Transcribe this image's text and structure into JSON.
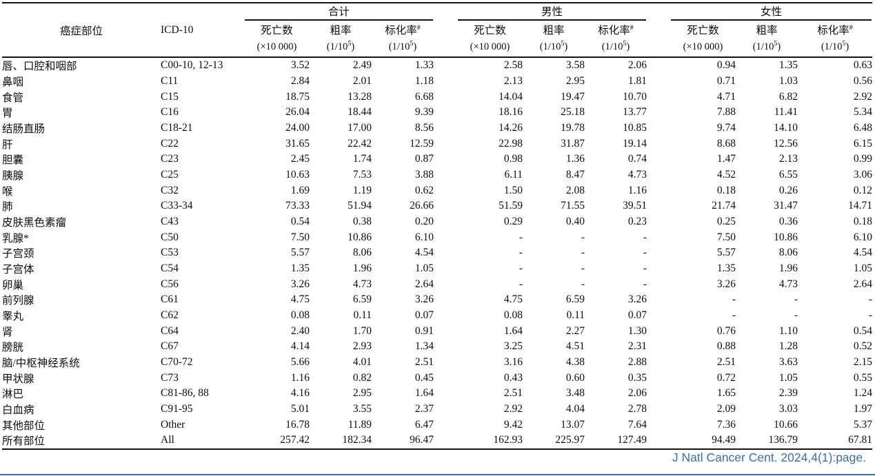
{
  "table": {
    "site_header": "癌症部位",
    "icd_header": "ICD-10",
    "groups": [
      "合计",
      "男性",
      "女性"
    ],
    "subcols": [
      {
        "label": "死亡数",
        "sup": "",
        "unit_pre": "(×10 000)",
        "unit_sup": "",
        "unit_post": ""
      },
      {
        "label": "粗率",
        "sup": "",
        "unit_pre": "(1/10",
        "unit_sup": "5",
        "unit_post": ")"
      },
      {
        "label": "标化率",
        "sup": "#",
        "unit_pre": "(1/10",
        "unit_sup": "5",
        "unit_post": ")"
      }
    ],
    "rows": [
      {
        "site": "唇、口腔和咽部",
        "icd": "C00-10, 12-13",
        "values": [
          "3.52",
          "2.49",
          "1.33",
          "2.58",
          "3.58",
          "2.06",
          "0.94",
          "1.35",
          "0.63"
        ]
      },
      {
        "site": "鼻咽",
        "icd": "C11",
        "values": [
          "2.84",
          "2.01",
          "1.18",
          "2.13",
          "2.95",
          "1.81",
          "0.71",
          "1.03",
          "0.56"
        ]
      },
      {
        "site": "食管",
        "icd": "C15",
        "values": [
          "18.75",
          "13.28",
          "6.68",
          "14.04",
          "19.47",
          "10.70",
          "4.71",
          "6.82",
          "2.92"
        ]
      },
      {
        "site": "胃",
        "icd": "C16",
        "values": [
          "26.04",
          "18.44",
          "9.39",
          "18.16",
          "25.18",
          "13.77",
          "7.88",
          "11.41",
          "5.34"
        ]
      },
      {
        "site": "结肠直肠",
        "icd": "C18-21",
        "values": [
          "24.00",
          "17.00",
          "8.56",
          "14.26",
          "19.78",
          "10.85",
          "9.74",
          "14.10",
          "6.48"
        ]
      },
      {
        "site": "肝",
        "icd": "C22",
        "values": [
          "31.65",
          "22.42",
          "12.59",
          "22.98",
          "31.87",
          "19.14",
          "8.68",
          "12.56",
          "6.15"
        ]
      },
      {
        "site": "胆囊",
        "icd": "C23",
        "values": [
          "2.45",
          "1.74",
          "0.87",
          "0.98",
          "1.36",
          "0.74",
          "1.47",
          "2.13",
          "0.99"
        ]
      },
      {
        "site": "胰腺",
        "icd": "C25",
        "values": [
          "10.63",
          "7.53",
          "3.88",
          "6.11",
          "8.47",
          "4.73",
          "4.52",
          "6.55",
          "3.06"
        ]
      },
      {
        "site": "喉",
        "icd": "C32",
        "values": [
          "1.69",
          "1.19",
          "0.62",
          "1.50",
          "2.08",
          "1.16",
          "0.18",
          "0.26",
          "0.12"
        ]
      },
      {
        "site": "肺",
        "icd": "C33-34",
        "values": [
          "73.33",
          "51.94",
          "26.66",
          "51.59",
          "71.55",
          "39.51",
          "21.74",
          "31.47",
          "14.71"
        ]
      },
      {
        "site": "皮肤黑色素瘤",
        "icd": "C43",
        "values": [
          "0.54",
          "0.38",
          "0.20",
          "0.29",
          "0.40",
          "0.23",
          "0.25",
          "0.36",
          "0.18"
        ]
      },
      {
        "site": "乳腺*",
        "icd": "C50",
        "values": [
          "7.50",
          "10.86",
          "6.10",
          "-",
          "-",
          "-",
          "7.50",
          "10.86",
          "6.10"
        ]
      },
      {
        "site": "子宫颈",
        "icd": "C53",
        "values": [
          "5.57",
          "8.06",
          "4.54",
          "-",
          "-",
          "-",
          "5.57",
          "8.06",
          "4.54"
        ]
      },
      {
        "site": "子宫体",
        "icd": "C54",
        "values": [
          "1.35",
          "1.96",
          "1.05",
          "-",
          "-",
          "-",
          "1.35",
          "1.96",
          "1.05"
        ]
      },
      {
        "site": "卵巢",
        "icd": "C56",
        "values": [
          "3.26",
          "4.73",
          "2.64",
          "-",
          "-",
          "-",
          "3.26",
          "4.73",
          "2.64"
        ]
      },
      {
        "site": "前列腺",
        "icd": "C61",
        "values": [
          "4.75",
          "6.59",
          "3.26",
          "4.75",
          "6.59",
          "3.26",
          "-",
          "-",
          "-"
        ]
      },
      {
        "site": "睾丸",
        "icd": "C62",
        "values": [
          "0.08",
          "0.11",
          "0.07",
          "0.08",
          "0.11",
          "0.07",
          "-",
          "-",
          "-"
        ]
      },
      {
        "site": "肾",
        "icd": "C64",
        "values": [
          "2.40",
          "1.70",
          "0.91",
          "1.64",
          "2.27",
          "1.30",
          "0.76",
          "1.10",
          "0.54"
        ]
      },
      {
        "site": "膀胱",
        "icd": "C67",
        "values": [
          "4.14",
          "2.93",
          "1.34",
          "3.25",
          "4.51",
          "2.31",
          "0.88",
          "1.28",
          "0.52"
        ]
      },
      {
        "site": "脑/中枢神经系统",
        "icd": "C70-72",
        "values": [
          "5.66",
          "4.01",
          "2.51",
          "3.16",
          "4.38",
          "2.88",
          "2.51",
          "3.63",
          "2.15"
        ]
      },
      {
        "site": "甲状腺",
        "icd": "C73",
        "values": [
          "1.16",
          "0.82",
          "0.45",
          "0.43",
          "0.60",
          "0.35",
          "0.72",
          "1.05",
          "0.55"
        ]
      },
      {
        "site": "淋巴",
        "icd": "C81-86, 88",
        "values": [
          "4.16",
          "2.95",
          "1.64",
          "2.51",
          "3.48",
          "2.06",
          "1.65",
          "2.39",
          "1.24"
        ]
      },
      {
        "site": "白血病",
        "icd": "C91-95",
        "values": [
          "5.01",
          "3.55",
          "2.37",
          "2.92",
          "4.04",
          "2.78",
          "2.09",
          "3.03",
          "1.97"
        ]
      },
      {
        "site": "其他部位",
        "icd": "Other",
        "values": [
          "16.78",
          "11.89",
          "6.47",
          "9.42",
          "13.07",
          "7.64",
          "7.36",
          "10.66",
          "5.37"
        ]
      },
      {
        "site": "所有部位",
        "icd": "All",
        "values": [
          "257.42",
          "182.34",
          "96.47",
          "162.93",
          "225.97",
          "127.49",
          "94.49",
          "136.79",
          "67.81"
        ]
      }
    ]
  },
  "footer": {
    "citation": "J Natl Cancer Cent. 2024,4(1):page."
  },
  "colors": {
    "text": "#0d0d0d",
    "rule": "#111111",
    "accent": "#3F6F9F"
  }
}
